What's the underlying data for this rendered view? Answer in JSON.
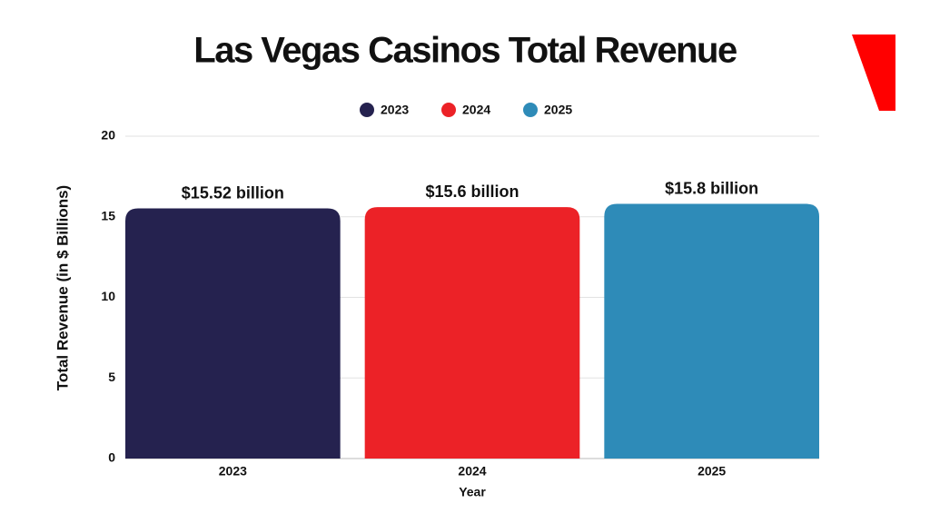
{
  "chart_data": {
    "type": "bar",
    "title": "Las Vegas Casinos Total Revenue",
    "categories": [
      "2023",
      "2024",
      "2025"
    ],
    "values": [
      15.52,
      15.6,
      15.8
    ],
    "value_labels": [
      "$15.52 billion",
      "$15.6 billion",
      "$15.8 billion"
    ],
    "colors": [
      "#25224f",
      "#ec2227",
      "#2e8bb8"
    ],
    "x_label": "Year",
    "y_label": "Total Revenue (in $ Billions)",
    "ylim": [
      0,
      20
    ],
    "yticks": [
      0,
      5,
      10,
      15,
      20
    ],
    "grid": true
  }
}
